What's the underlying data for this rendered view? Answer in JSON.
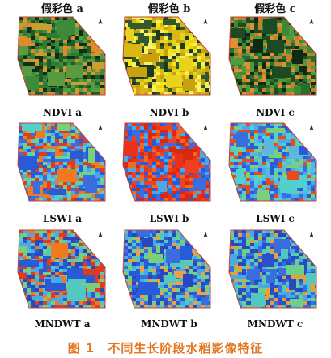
{
  "figure": {
    "rows": [
      {
        "labels_above": true,
        "labels": [
          "假彩色 a",
          "假彩色 b",
          "假彩色 c"
        ],
        "palette": [
          "falsecolor_a",
          "falsecolor_b",
          "falsecolor_c"
        ]
      },
      {
        "labels_above": true,
        "labels": [
          "NDVI a",
          "NDVI b",
          "NDVI c"
        ],
        "palette": [
          "ndvi_a",
          "ndvi_b",
          "ndvi_c"
        ]
      },
      {
        "labels_above": true,
        "labels": [
          "LSWI a",
          "LSWI b",
          "LSWI c"
        ],
        "palette": [
          "lswi_a",
          "lswi_b",
          "lswi_c"
        ]
      },
      {
        "labels_above": false,
        "labels": [
          "MNDWT a",
          "MNDWT b",
          "MNDWT c"
        ],
        "palette": [
          "mndwt_a",
          "mndwt_b",
          "mndwt_c"
        ]
      }
    ],
    "caption": "图 1　不同生长阶段水稻影像特征",
    "north_arrow_icon": "north-arrow-icon",
    "colors": {
      "caption": "#e3761f",
      "falsecolor_a": [
        "#1f5a2a",
        "#2f7a35",
        "#3c8a3a",
        "#0f3018",
        "#5a9a40",
        "#c9a030",
        "#e08a2a"
      ],
      "falsecolor_b": [
        "#f3e61a",
        "#e8d21c",
        "#d9b814",
        "#2f5a30",
        "#1a3a20",
        "#f7f060",
        "#c8a010"
      ],
      "falsecolor_c": [
        "#2a6e2e",
        "#3a8a36",
        "#1c4a22",
        "#4e9a3e",
        "#c2822a",
        "#e09030",
        "#0f2a14"
      ],
      "ndvi_a": [
        "#2a5bd7",
        "#4aa8e8",
        "#52d0d0",
        "#7ad07a",
        "#3a6ee0",
        "#e23a1a",
        "#f07a20"
      ],
      "ndvi_b": [
        "#e8321a",
        "#f04020",
        "#d82814",
        "#2a5bd7",
        "#4aa8e8",
        "#3a6ee0",
        "#f06a20"
      ],
      "ndvi_c": [
        "#2a5bd7",
        "#4aa8e8",
        "#52d0d0",
        "#7ad07a",
        "#3a6ee0",
        "#5ab8e0",
        "#e84a1a"
      ],
      "lswi_a": [
        "#2a5bd7",
        "#3a6ee0",
        "#52c8c0",
        "#7ad07a",
        "#e23a1a",
        "#f07a20",
        "#4aa8e8"
      ],
      "lswi_b": [
        "#2a4fcf",
        "#3a62d8",
        "#4aa8e8",
        "#52c8c0",
        "#6ad08a",
        "#2a5bd7",
        "#f0a040"
      ],
      "lswi_c": [
        "#2a5bd7",
        "#4aa8e8",
        "#52d0d0",
        "#7ad07a",
        "#3a6ee0",
        "#6ac0e0",
        "#2848c0"
      ],
      "mndwt_a": [
        "#2a5bd7",
        "#4aa8e8",
        "#52c8c0",
        "#7ad07a",
        "#e23a1a",
        "#f07a20",
        "#2848c0"
      ],
      "mndwt_b": [
        "#2848c0",
        "#2a5bd7",
        "#3a6ee0",
        "#4aa8e8",
        "#52c8c0",
        "#7ad07a",
        "#f0a040"
      ],
      "mndwt_c": [
        "#2a4fcf",
        "#3a6ee0",
        "#4aa8e8",
        "#52c8c0",
        "#6ad08a",
        "#e8a030",
        "#2848c0"
      ]
    }
  }
}
